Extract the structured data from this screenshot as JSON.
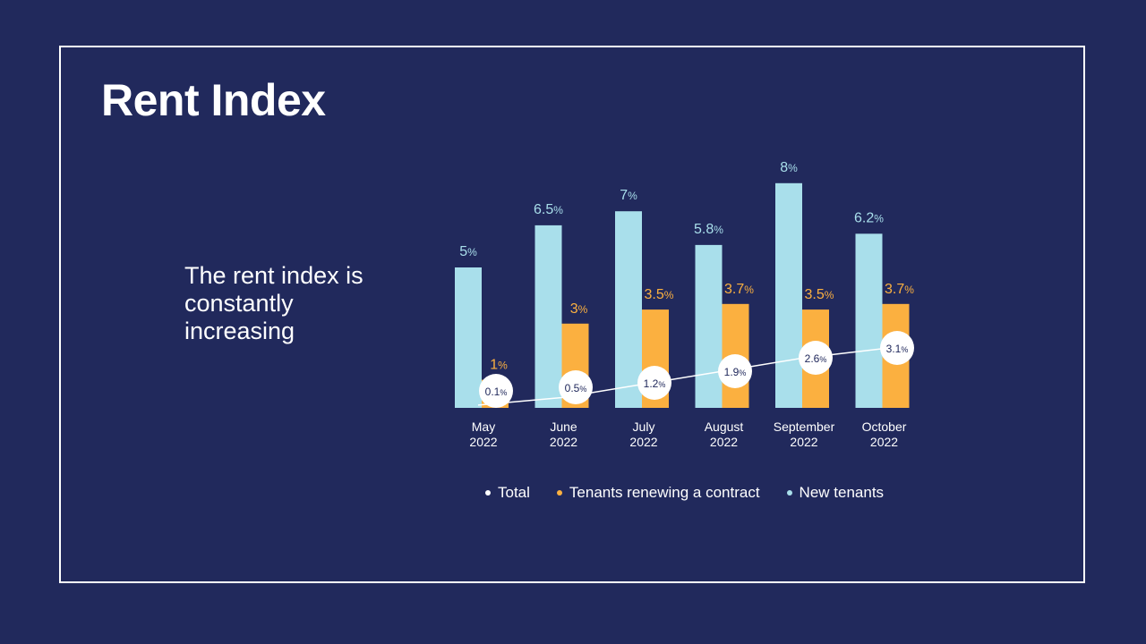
{
  "slide": {
    "title": "Rent Index",
    "subtitle": "The rent index is constantly increasing"
  },
  "colors": {
    "background": "#21295c",
    "new_tenants": "#a9dfeb",
    "renewing": "#fbb040",
    "total": "#ffffff",
    "bar_label_new": "#a9dfeb",
    "bar_label_renewing": "#fbb040"
  },
  "chart_data": {
    "type": "bar",
    "categories": [
      [
        "May",
        "2022"
      ],
      [
        "June",
        "2022"
      ],
      [
        "July",
        "2022"
      ],
      [
        "August",
        "2022"
      ],
      [
        "September",
        "2022"
      ],
      [
        "October",
        "2022"
      ]
    ],
    "series": [
      {
        "name": "New tenants",
        "type": "bar",
        "values": [
          5,
          6.5,
          7,
          5.8,
          8,
          6.2
        ],
        "labels": [
          "5",
          "6.5",
          "7",
          "5.8",
          "8",
          "6.2"
        ]
      },
      {
        "name": "Tenants renewing a contract",
        "type": "bar",
        "values": [
          1,
          3,
          3.5,
          3.7,
          3.5,
          3.7
        ],
        "labels": [
          "1",
          "3",
          "3.5",
          "3.7",
          "3.5",
          "3.7"
        ]
      },
      {
        "name": "Total",
        "type": "line",
        "values": [
          0.1,
          0.5,
          1.2,
          1.9,
          2.6,
          3.1
        ],
        "labels": [
          "0.1",
          "0.5",
          "1.2",
          "1.9",
          "2.6",
          "3.1"
        ]
      }
    ],
    "unit": "%",
    "ylim": [
      0,
      8
    ],
    "legend": [
      "Total",
      "Tenants renewing a contract",
      "New tenants"
    ],
    "legend_position": "bottom",
    "grid": false
  }
}
